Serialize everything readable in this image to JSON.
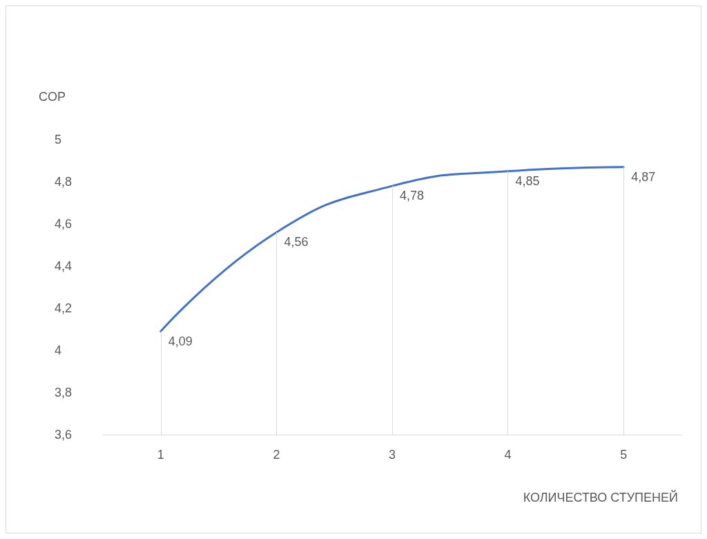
{
  "chart_data": {
    "type": "line",
    "xlabel": "КОЛИЧЕСТВО СТУПЕНЕЙ",
    "ylabel": "COP",
    "categories": [
      "1",
      "2",
      "3",
      "4",
      "5"
    ],
    "series": [
      {
        "color": "#4472c4",
        "values": [
          4.09,
          4.56,
          4.78,
          4.85,
          4.87
        ],
        "value_labels": [
          "4,09",
          "4,56",
          "4,78",
          "4,85",
          "4,87"
        ]
      }
    ],
    "ylim": [
      3.6,
      5
    ],
    "yticks": [
      {
        "value": 3.6,
        "label": "3,6"
      },
      {
        "value": 3.8,
        "label": "3,8"
      },
      4,
      {
        "value": 4.2,
        "label": "4,2"
      },
      {
        "value": 4.4,
        "label": "4,4"
      },
      {
        "value": 4.6,
        "label": "4,6"
      },
      {
        "value": 4.8,
        "label": "4,8"
      },
      5
    ],
    "grid": "x",
    "marker": "none",
    "line_style": "solid"
  }
}
